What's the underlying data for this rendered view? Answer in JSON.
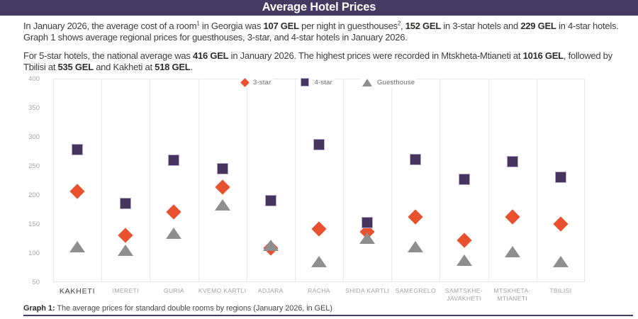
{
  "header": {
    "title": "Average Hotel Prices"
  },
  "paragraphs": [
    {
      "segments": [
        {
          "t": "In January 2026, the average cost of a room"
        },
        {
          "t": "1",
          "sup": true
        },
        {
          "t": " in Georgia was "
        },
        {
          "t": "107 GEL",
          "b": true
        },
        {
          "t": " per night in guesthouses"
        },
        {
          "t": "2",
          "sup": true
        },
        {
          "t": ", "
        },
        {
          "t": "152 GEL",
          "b": true
        },
        {
          "t": " in 3-star hotels and "
        },
        {
          "t": "229 GEL",
          "b": true
        },
        {
          "t": " in 4-star hotels. Graph 1 shows average regional prices for guesthouses, 3-star, and 4-star hotels in January 2026."
        }
      ]
    },
    {
      "segments": [
        {
          "t": "For 5-star hotels, the national average was "
        },
        {
          "t": "416 GEL",
          "b": true
        },
        {
          "t": " in January 2026. The highest prices were recorded in Mtskheta-Mtianeti at "
        },
        {
          "t": "1016 GEL",
          "b": true
        },
        {
          "t": ", followed by Tbilisi at "
        },
        {
          "t": "535 GEL",
          "b": true
        },
        {
          "t": " and Kakheti at "
        },
        {
          "t": "518 GEL",
          "b": true
        },
        {
          "t": "."
        }
      ]
    }
  ],
  "chart_data": {
    "type": "scatter",
    "title": "",
    "xlabel": "",
    "ylabel": "",
    "ylim": [
      50,
      400
    ],
    "ytick_step": 50,
    "grid": "vertical-only",
    "legend_position": "top",
    "categories": [
      "KAKHETI",
      "IMERETI",
      "GURIA",
      "KVEMO KARTLI",
      "ADJARA",
      "RACHA",
      "SHIDA KARTLI",
      "SAMEGRELO",
      "SAMTSKHE-JAVAKHETI",
      "MTSKHETA-MTIANETI",
      "TBILISI"
    ],
    "category_labels": [
      "KAKHETI",
      "IMERETI",
      "GURIA",
      "KVEMO KARTLI",
      "ADJARA",
      "RACHA",
      "SHIDA KARTLI",
      "SAMEGRELO",
      "SAMTSKHE-\nJAVAKHETI",
      "MTSKHETA-\nMTIANETI",
      "TBILISI"
    ],
    "emphasized_category": "KAKHETI",
    "series": [
      {
        "name": "3-star",
        "marker": "diamond",
        "color": "#e8502e",
        "values": [
          206,
          130,
          171,
          214,
          108,
          142,
          137,
          162,
          122,
          162,
          150
        ]
      },
      {
        "name": "4-star",
        "marker": "square",
        "color": "#46355f",
        "edge": "#b3abc9",
        "values": [
          278,
          185,
          260,
          245,
          190,
          286,
          152,
          261,
          227,
          257,
          230
        ]
      },
      {
        "name": "Guesthouse",
        "marker": "triangle",
        "color": "#8e8e8e",
        "values": [
          111,
          105,
          134,
          183,
          113,
          85,
          126,
          111,
          88,
          102,
          85
        ]
      }
    ]
  },
  "caption": {
    "segments": [
      {
        "t": "Graph 1: ",
        "b": true
      },
      {
        "t": "The average prices for standard double rooms by regions (January 2026, in GEL)"
      }
    ]
  },
  "colors": {
    "header_bg": "#453a61",
    "body_text": "#3d3d3c",
    "grid": "#ececec",
    "axis_label": "#a8a8a8",
    "bottom_rule": "#453a61"
  }
}
